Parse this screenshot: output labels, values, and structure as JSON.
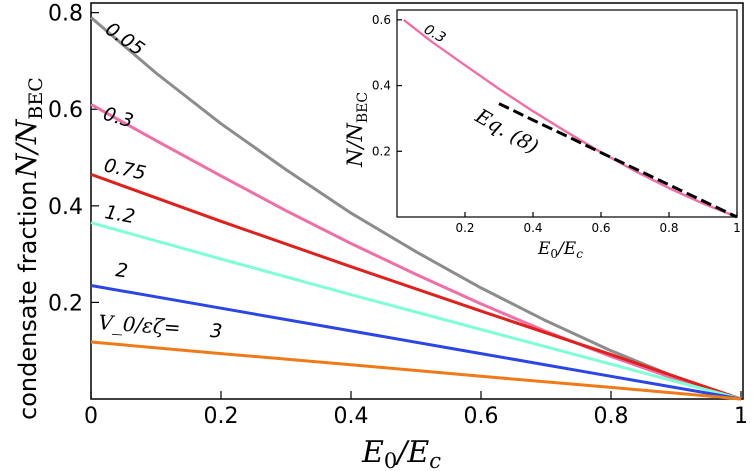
{
  "chart_data": [
    {
      "type": "line",
      "title": "",
      "xlabel": "E_0/E_c",
      "ylabel_prefix": "condensate fraction",
      "ylabel_math": "N/N_BEC",
      "xlim": [
        0,
        1
      ],
      "ylim": [
        0,
        0.82
      ],
      "xticks": [
        0,
        0.2,
        0.4,
        0.6,
        0.8,
        1
      ],
      "xtick_labels": [
        "0",
        "0.2",
        "0.4",
        "0.6",
        "0.8",
        "1"
      ],
      "yticks": [
        0.2,
        0.4,
        0.6,
        0.8
      ],
      "ytick_labels": [
        "0.2",
        "0.4",
        "0.6",
        "0.8"
      ],
      "grid": false,
      "label_prefix": "V_0/εζ=",
      "series": [
        {
          "name": "0.05",
          "color": "#8c8c8c",
          "x": [
            0,
            0.1,
            0.2,
            0.3,
            0.4,
            0.5,
            0.6,
            0.7,
            0.8,
            0.9,
            1
          ],
          "y": [
            0.79,
            0.675,
            0.57,
            0.475,
            0.385,
            0.305,
            0.23,
            0.162,
            0.1,
            0.045,
            0
          ]
        },
        {
          "name": "0.3",
          "color": "#f06fa6",
          "x": [
            0,
            0.1,
            0.2,
            0.3,
            0.4,
            0.5,
            0.6,
            0.7,
            0.8,
            0.9,
            1
          ],
          "y": [
            0.61,
            0.535,
            0.462,
            0.39,
            0.322,
            0.258,
            0.197,
            0.14,
            0.088,
            0.041,
            0
          ]
        },
        {
          "name": "0.75",
          "color": "#e0201c",
          "x": [
            0,
            0.2,
            0.4,
            0.6,
            0.8,
            1
          ],
          "y": [
            0.465,
            0.368,
            0.274,
            0.182,
            0.092,
            0
          ]
        },
        {
          "name": "1.2",
          "color": "#7fffd8",
          "x": [
            0,
            0.2,
            0.4,
            0.6,
            0.8,
            1
          ],
          "y": [
            0.365,
            0.29,
            0.216,
            0.144,
            0.072,
            0
          ]
        },
        {
          "name": "2",
          "color": "#2b45e6",
          "x": [
            0,
            0.2,
            0.4,
            0.6,
            0.8,
            1
          ],
          "y": [
            0.235,
            0.188,
            0.141,
            0.094,
            0.047,
            0
          ]
        },
        {
          "name": "3",
          "color": "#f07a17",
          "x": [
            0,
            0.2,
            0.4,
            0.6,
            0.8,
            1
          ],
          "y": [
            0.118,
            0.094,
            0.071,
            0.047,
            0.024,
            0
          ]
        }
      ]
    },
    {
      "type": "line",
      "title": "",
      "xlabel": "E_0/E_c",
      "ylabel": "N/N_BEC",
      "xlim": [
        0,
        1
      ],
      "ylim": [
        0,
        0.63
      ],
      "xticks": [
        0.2,
        0.4,
        0.6,
        0.8,
        1
      ],
      "xtick_labels": [
        "0.2",
        "0.4",
        "0.6",
        "0.8",
        "1"
      ],
      "yticks": [
        0.2,
        0.4,
        0.6
      ],
      "ytick_labels": [
        "0.2",
        "0.4",
        "0.6"
      ],
      "grid": false,
      "series": [
        {
          "name": "0.3",
          "color": "#f06fa6",
          "style": "solid",
          "x": [
            0.02,
            0.1,
            0.2,
            0.3,
            0.4,
            0.5,
            0.6,
            0.7,
            0.8,
            0.9,
            1
          ],
          "y": [
            0.6,
            0.535,
            0.462,
            0.39,
            0.322,
            0.258,
            0.197,
            0.14,
            0.088,
            0.041,
            0
          ]
        },
        {
          "name": "Eq. (8)",
          "color": "#000000",
          "style": "dashed",
          "x": [
            0.3,
            0.4,
            0.5,
            0.6,
            0.7,
            0.8,
            0.9,
            1
          ],
          "y": [
            0.345,
            0.295,
            0.246,
            0.196,
            0.147,
            0.098,
            0.049,
            0
          ]
        }
      ]
    }
  ]
}
